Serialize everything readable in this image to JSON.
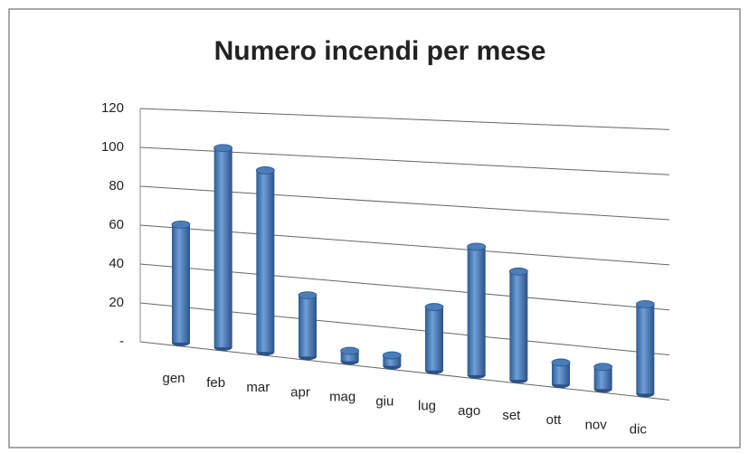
{
  "chart_data": {
    "type": "bar",
    "title": "Numero incendi per mese",
    "categories": [
      "gen",
      "feb",
      "mar",
      "apr",
      "mag",
      "giu",
      "lug",
      "ago",
      "set",
      "ott",
      "nov",
      "dic"
    ],
    "values": [
      60,
      100,
      90,
      30,
      5,
      5,
      30,
      60,
      50,
      10,
      10,
      40
    ],
    "color": "#4a7ebb",
    "ylim": [
      0,
      120
    ],
    "yticks": [
      {
        "value": 0,
        "label": "-"
      },
      20,
      40,
      60,
      80,
      100,
      120
    ],
    "grid": true
  }
}
